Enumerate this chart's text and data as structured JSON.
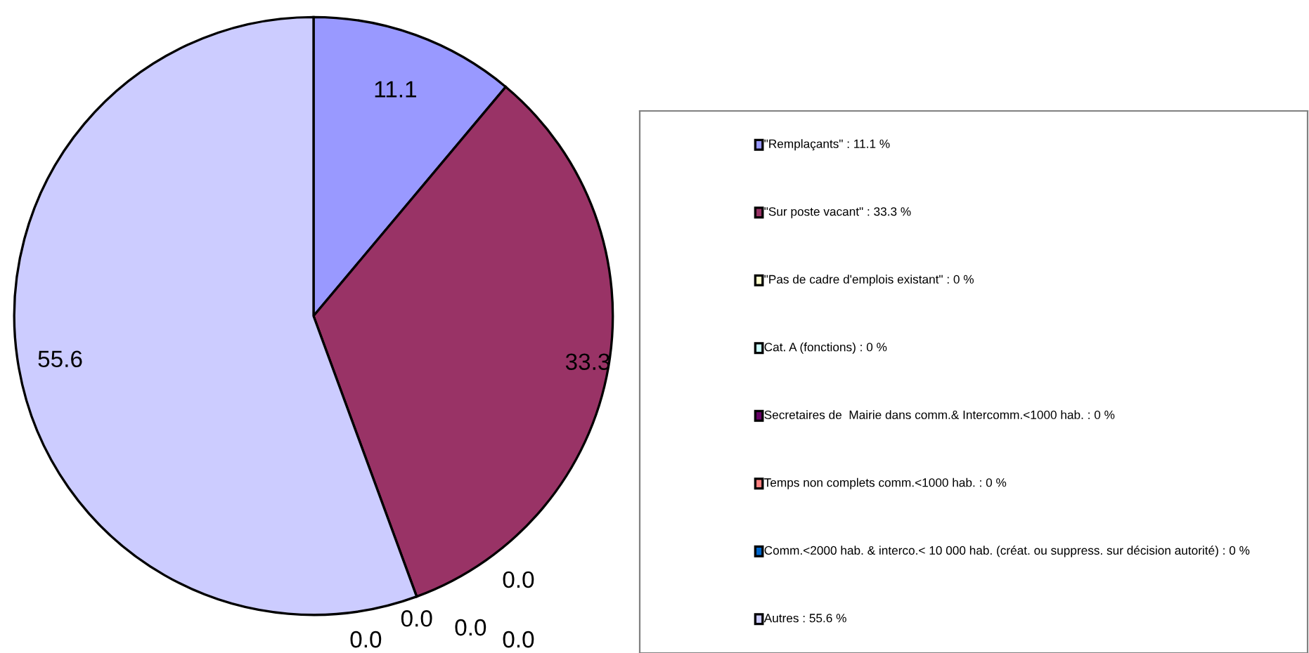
{
  "chart_data": {
    "type": "pie",
    "categories": [
      "\"Remplaçants\" : 11.1 %",
      "\"Sur poste vacant\" : 33.3 %",
      "\"Pas de cadre d'emplois existant\" : 0 %",
      "Cat. A (fonctions) : 0 %",
      "Secretaires de  Mairie dans comm.& Intercomm.<1000 hab. : 0 %",
      "Temps non complets comm.<1000 hab. : 0 %",
      "Comm.<2000 hab. & interco.< 10 000 hab. (créat. ou suppress. sur décision autorité) : 0 %",
      "Autres : 55.6 %"
    ],
    "values": [
      11.1,
      33.3,
      0,
      0,
      0,
      0,
      0,
      55.6
    ],
    "value_labels": [
      "11.1",
      "33.3",
      "0.0",
      "0.0",
      "0.0",
      "0.0",
      "0.0",
      "55.6"
    ],
    "colors": [
      "#9999ff",
      "#993366",
      "#ffffcc",
      "#ccffff",
      "#660066",
      "#ff8080",
      "#0066cc",
      "#ccccff"
    ],
    "legend": "right"
  }
}
